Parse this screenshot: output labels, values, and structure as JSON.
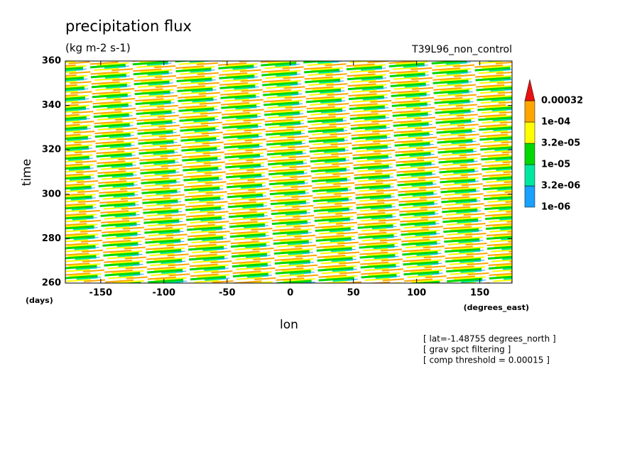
{
  "chart_data": {
    "type": "contour",
    "title": "precipitation flux",
    "subtitle": "(kg m-2 s-1)",
    "dataset": "T39L96_non_control",
    "x_label": "lon",
    "x_units": "(degrees_east)",
    "y_label": "time",
    "y_units": "(days)",
    "xlim": [
      -178,
      175.5
    ],
    "xticks": [
      -150,
      -100,
      -50,
      0,
      50,
      100,
      150
    ],
    "ylim": [
      260,
      360
    ],
    "yticks": [
      260,
      280,
      300,
      320,
      340,
      360
    ],
    "levels": [
      {
        "value": 1e-06,
        "label": "1e-06"
      },
      {
        "value": 3.2e-06,
        "label": "3.2e-06"
      },
      {
        "value": 1e-05,
        "label": "1e-05"
      },
      {
        "value": 3.2e-05,
        "label": "3.2e-05"
      },
      {
        "value": 0.0001,
        "label": "1e-04"
      },
      {
        "value": 0.00032,
        "label": "0.00032"
      }
    ],
    "colors": [
      "#1aa0ff",
      "#00e8a0",
      "#00d800",
      "#ffff00",
      "#ffa500"
    ],
    "extend_color": "#e81010",
    "notes": [
      "[ lat=-1.48755 degrees_north ]",
      "[ grav spct filtering ]",
      "[ comp threshold = 0.00015 ]"
    ]
  }
}
